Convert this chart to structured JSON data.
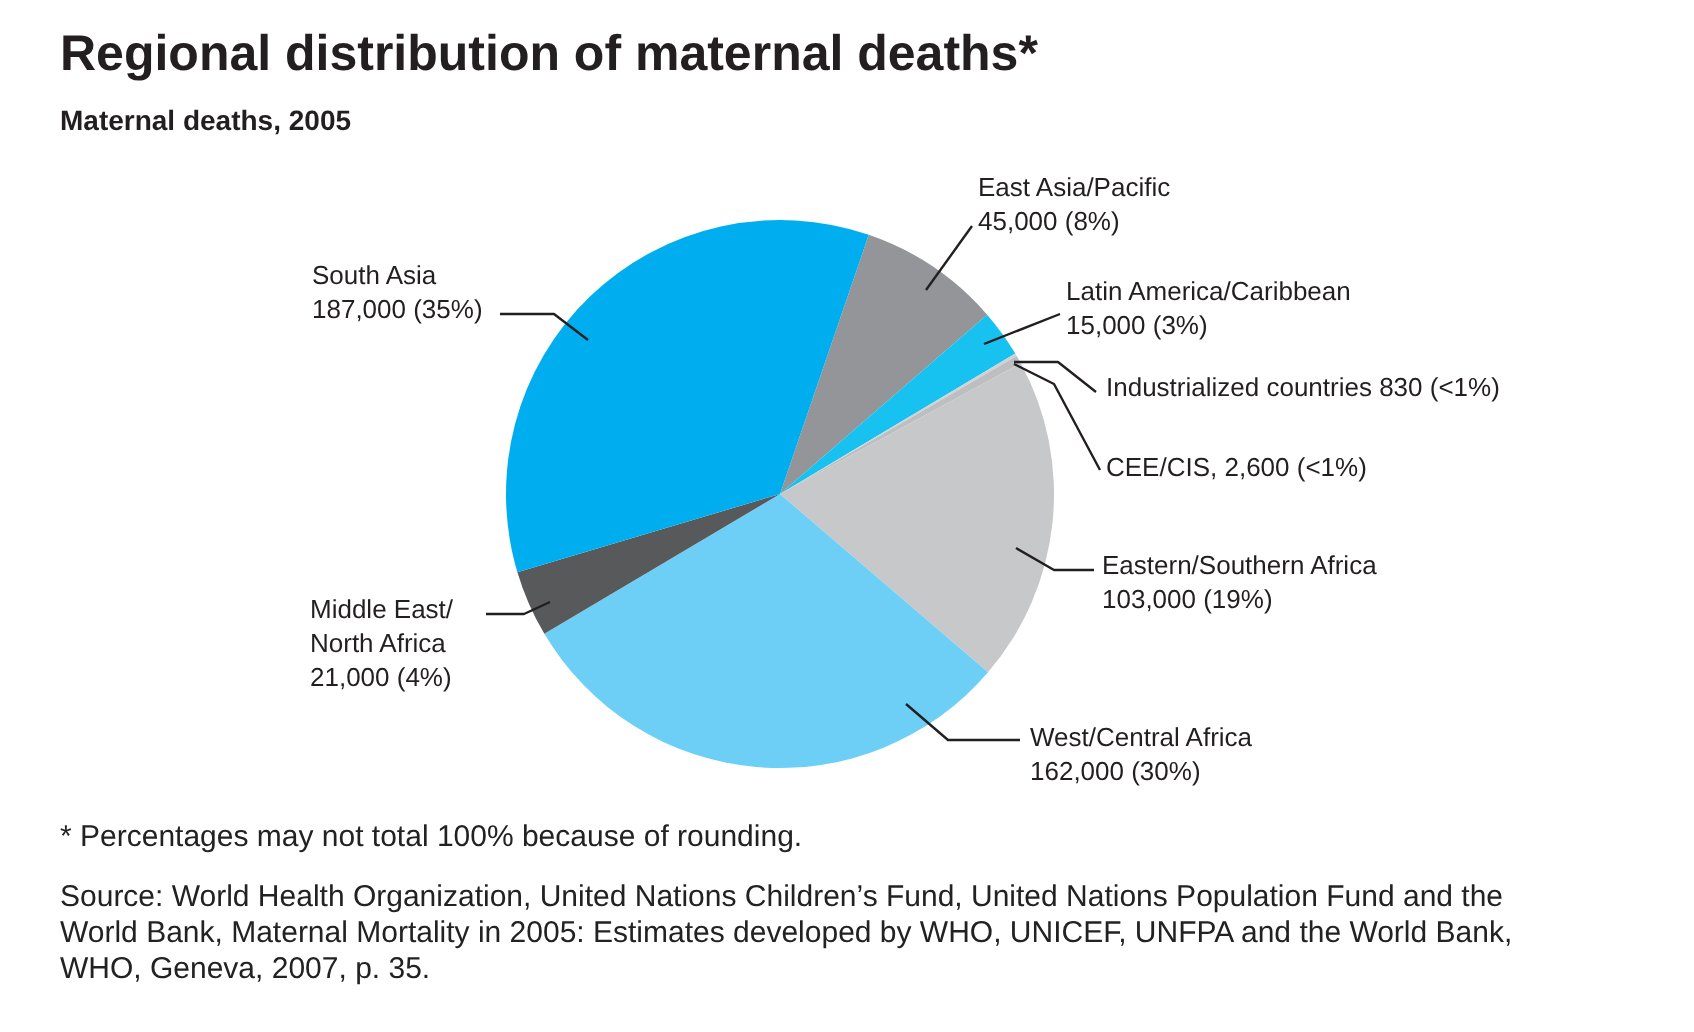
{
  "chart_data": {
    "type": "pie",
    "title": "Regional distribution of maternal deaths*",
    "subtitle": "Maternal deaths, 2005",
    "categories": [
      "East Asia/Pacific",
      "Latin America/Caribbean",
      "Industrialized countries",
      "CEE/CIS",
      "Eastern/Southern Africa",
      "West/Central Africa",
      "Middle East/\nNorth Africa",
      "South Asia"
    ],
    "values": [
      45000,
      15000,
      830,
      2600,
      103000,
      162000,
      21000,
      187000
    ],
    "value_labels": [
      "45,000 (8%)",
      "15,000 (3%)",
      "830 (<1%)",
      "2,600 (<1%)",
      "103,000 (19%)",
      "162,000 (30%)",
      "21,000 (4%)",
      "187,000 (35%)"
    ],
    "colors": [
      "#939598",
      "#17c1f0",
      "#d0d2d3",
      "#bcbec0",
      "#c7c8ca",
      "#6dcff6",
      "#58595b",
      "#00aeef"
    ],
    "annotations": [
      "* Percentages may not total 100% because of rounding.",
      "Source: World Health Organization, United Nations Children’s Fund, United Nations Population Fund and the World Bank, Maternal Mortality in 2005: Estimates developed by WHO, UNICEF, UNFPA and the World Bank, WHO, Geneva, 2007, p. 35."
    ]
  }
}
